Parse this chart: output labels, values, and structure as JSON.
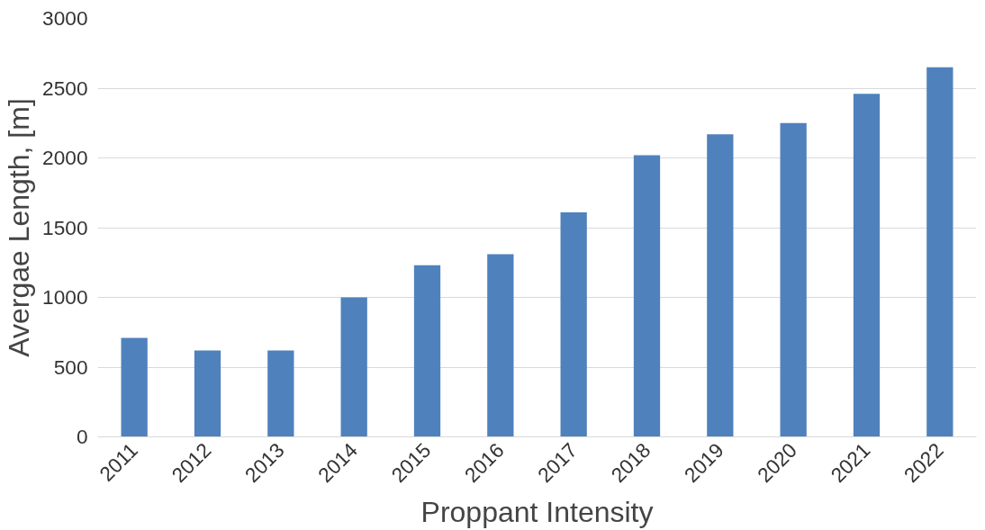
{
  "chart_data": {
    "type": "bar",
    "xlabel": "Proppant Intensity",
    "ylabel": "Avergae Length, [m]",
    "categories": [
      "2011",
      "2012",
      "2013",
      "2014",
      "2015",
      "2016",
      "2017",
      "2018",
      "2019",
      "2020",
      "2021",
      "2022"
    ],
    "values": [
      710,
      620,
      620,
      1000,
      1230,
      1310,
      1610,
      2020,
      2170,
      2250,
      2460,
      2650
    ],
    "color": "#4f81bd",
    "ylim": [
      0,
      3000
    ],
    "yticks": [
      0,
      500,
      1000,
      1500,
      2000,
      2500,
      3000
    ],
    "grid": "y"
  }
}
